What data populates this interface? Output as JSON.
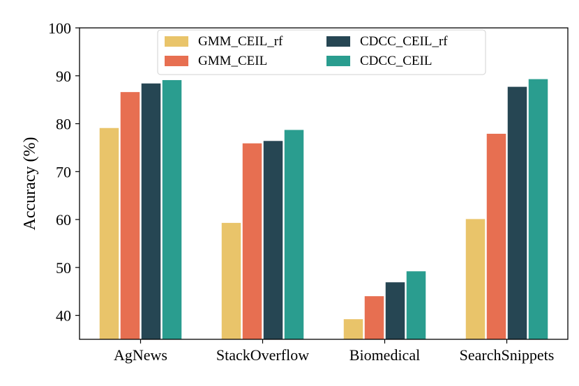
{
  "chart_data": {
    "type": "bar",
    "title": "",
    "xlabel": "",
    "ylabel": "Accuracy (%)",
    "ylim": [
      35,
      100
    ],
    "yticks": [
      40,
      50,
      60,
      70,
      80,
      90,
      100
    ],
    "grid": false,
    "legend_position": "top-center",
    "categories": [
      "AgNews",
      "StackOverflow",
      "Biomedical",
      "SearchSnippets"
    ],
    "series": [
      {
        "name": "GMM_CEIL_rf",
        "color": "#E9C46A",
        "values": [
          79.1,
          59.3,
          39.2,
          60.1
        ]
      },
      {
        "name": "GMM_CEIL",
        "color": "#E76F51",
        "values": [
          86.6,
          75.9,
          44.0,
          77.9
        ]
      },
      {
        "name": "CDCC_CEIL_rf",
        "color": "#264653",
        "values": [
          88.4,
          76.4,
          46.9,
          87.7
        ]
      },
      {
        "name": "CDCC_CEIL",
        "color": "#2A9D8F",
        "values": [
          89.1,
          78.7,
          49.2,
          89.3
        ]
      }
    ]
  }
}
